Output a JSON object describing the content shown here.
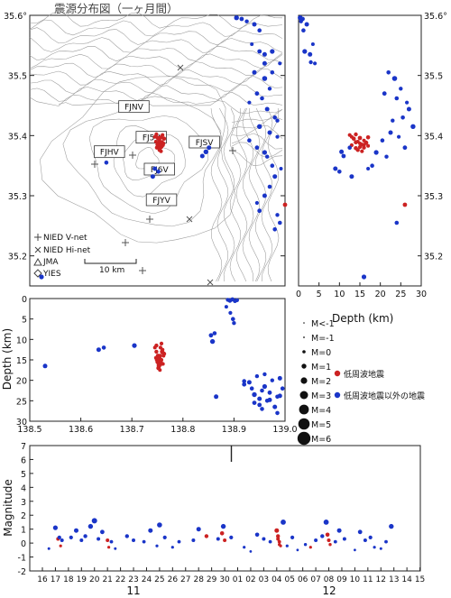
{
  "title": "震源分布図（一ヶ月間）",
  "colors": {
    "red": "#cc2222",
    "blue": "#1a35c8",
    "frame": "#222222",
    "topo": "#9a9a9a"
  },
  "map": {
    "lat_ticks": [
      "35.6°",
      "35.5",
      "35.4",
      "35.3",
      "35.2"
    ],
    "lat_values": [
      35.6,
      35.5,
      35.4,
      35.3,
      35.2
    ],
    "lon_ticks": [
      "138.5",
      "138.6",
      "138.7",
      "138.8",
      "138.9",
      "139.0"
    ],
    "lon_values": [
      138.5,
      138.6,
      138.7,
      138.8,
      138.9,
      139.0
    ],
    "stations": [
      {
        "label": "FJNV",
        "lon": 138.704,
        "lat": 35.446
      },
      {
        "label": "FJ5V",
        "lon": 138.738,
        "lat": 35.395
      },
      {
        "label": "FJSV",
        "lon": 138.842,
        "lat": 35.387
      },
      {
        "label": "FJHV",
        "lon": 138.656,
        "lat": 35.371
      },
      {
        "label": "FJ6V",
        "lon": 138.754,
        "lat": 35.342
      },
      {
        "label": "FJYV",
        "lon": 138.758,
        "lat": 35.291
      }
    ],
    "legend": [
      "NIED V-net",
      "NIED Hi-net",
      "JMA",
      "YIES"
    ],
    "scale_label": "10 km"
  },
  "depth_axis_label": "Depth (km)",
  "depth_ticks_h": [
    "0",
    "5",
    "10",
    "15",
    "20",
    "25",
    "30"
  ],
  "depth_ticks_v": [
    "0",
    "5",
    "10",
    "15",
    "20",
    "25",
    "30"
  ],
  "mag_legend": [
    "M<-1",
    "M=-1",
    "M=0",
    "M=1",
    "M=2",
    "M=3",
    "M=4",
    "M=5",
    "M=6"
  ],
  "type_legend": [
    "低周波地震",
    "低周波地震以外の地震"
  ],
  "timeline": {
    "ylabel": "Magnitude",
    "yticks": [
      "7",
      "6",
      "5",
      "4",
      "3",
      "2",
      "1",
      "0",
      "-1",
      "-2"
    ],
    "day_labels": [
      "16",
      "17",
      "18",
      "19",
      "20",
      "21",
      "22",
      "23",
      "24",
      "25",
      "26",
      "27",
      "28",
      "29",
      "30",
      "01",
      "02",
      "03",
      "04",
      "05",
      "06",
      "07",
      "08",
      "09",
      "10",
      "11",
      "12",
      "13",
      "14",
      "15"
    ],
    "months": [
      "11",
      "12"
    ]
  },
  "chart_data": [
    {
      "type": "scatter",
      "name": "epicenter map",
      "xlabel": "",
      "ylabel": "",
      "xlim": [
        138.5,
        139.0
      ],
      "ylim": [
        35.15,
        35.6
      ],
      "series": [
        {
          "name": "低周波地震",
          "color": "#cc2222",
          "x": [
            138.745,
            138.748,
            138.751,
            138.754,
            138.757,
            138.76,
            138.763,
            138.747,
            138.75,
            138.753,
            138.756,
            138.759,
            138.762,
            138.749,
            138.752,
            138.755,
            138.758,
            138.761,
            138.754,
            138.757,
            139.0
          ],
          "y": [
            35.398,
            35.402,
            35.396,
            35.392,
            35.397,
            35.401,
            35.395,
            35.39,
            35.385,
            35.388,
            35.384,
            35.389,
            35.387,
            35.38,
            35.383,
            35.379,
            35.381,
            35.384,
            35.376,
            35.374,
            35.285
          ],
          "m": [
            0.3,
            0.5,
            0.8,
            0.2,
            0.6,
            0.4,
            0.7,
            0.3,
            0.5,
            0.9,
            0.4,
            0.6,
            0.3,
            0.5,
            0.2,
            0.6,
            0.4,
            0.3,
            0.5,
            0.4,
            0.8
          ]
        },
        {
          "name": "低周波地震以外の地震",
          "color": "#1a35c8",
          "x": [
            138.905,
            138.915,
            138.925,
            138.94,
            138.95,
            138.935,
            138.96,
            138.975,
            138.99,
            138.975,
            138.96,
            138.97,
            138.945,
            138.955,
            138.93,
            138.965,
            138.98,
            138.985,
            138.95,
            138.97,
            138.985,
            138.93,
            138.945,
            138.96,
            138.965,
            138.975,
            138.992,
            138.98,
            138.97,
            138.96,
            138.945,
            138.95,
            138.985,
            138.99,
            138.98,
            138.845,
            138.838,
            138.851,
            138.745,
            138.752,
            138.741,
            138.523,
            138.65,
            138.95,
            138.96,
            138.94
          ],
          "y": [
            35.596,
            35.594,
            35.59,
            35.585,
            35.575,
            35.552,
            35.535,
            35.54,
            35.52,
            35.505,
            35.495,
            35.478,
            35.47,
            35.462,
            35.455,
            35.444,
            35.43,
            35.425,
            35.415,
            35.405,
            35.398,
            35.392,
            35.38,
            35.372,
            35.365,
            35.35,
            35.345,
            35.332,
            35.315,
            35.3,
            35.288,
            35.275,
            35.268,
            35.255,
            35.244,
            35.373,
            35.366,
            35.38,
            35.345,
            35.34,
            35.332,
            35.165,
            35.355,
            35.54,
            35.52,
            35.505
          ],
          "m": [
            1.2,
            0.8,
            0.5,
            1.0,
            0.6,
            0.3,
            0.9,
            1.1,
            0.4,
            0.7,
            1.3,
            0.5,
            0.8,
            0.6,
            0.4,
            1.0,
            0.7,
            0.5,
            1.2,
            0.9,
            0.4,
            0.6,
            0.8,
            1.1,
            0.5,
            0.7,
            0.3,
            0.9,
            0.6,
            1.0,
            0.4,
            0.8,
            0.5,
            0.7,
            0.6,
            1.2,
            0.9,
            1.0,
            0.8,
            0.6,
            0.9,
            1.1,
            0.7,
            0.8,
            1.0,
            0.9
          ]
        }
      ]
    },
    {
      "type": "scatter",
      "name": "depth vs latitude",
      "xlabel": "Depth (km)",
      "ylabel": "",
      "xlim": [
        0,
        30
      ],
      "ylim": [
        35.15,
        35.6
      ],
      "series": [
        {
          "name": "低周波地震",
          "color": "#cc2222",
          "x": [
            13.0,
            14.0,
            15.0,
            16.0,
            17.0,
            12.5,
            13.5,
            14.5,
            15.5,
            16.5,
            13.0,
            14.0,
            15.0,
            16.0,
            17.0,
            14.0,
            15.0,
            16.0,
            14.5,
            15.5,
            26
          ],
          "y": [
            35.398,
            35.402,
            35.396,
            35.392,
            35.397,
            35.401,
            35.395,
            35.39,
            35.385,
            35.388,
            35.384,
            35.389,
            35.387,
            35.38,
            35.383,
            35.379,
            35.381,
            35.384,
            35.376,
            35.374,
            35.285
          ],
          "m": [
            0.3,
            0.5,
            0.8,
            0.2,
            0.6,
            0.4,
            0.7,
            0.3,
            0.5,
            0.9,
            0.4,
            0.6,
            0.3,
            0.5,
            0.2,
            0.6,
            0.4,
            0.3,
            0.5,
            0.4,
            0.8
          ]
        },
        {
          "name": "低周波地震以外の地震",
          "color": "#1a35c8",
          "x": [
            0.4,
            1.0,
            0.6,
            2.0,
            1.2,
            3.5,
            2.8,
            1.5,
            4.0,
            22.0,
            23.5,
            25.0,
            21.0,
            24.0,
            26.5,
            27.0,
            25.5,
            23.0,
            28.0,
            22.5,
            24.5,
            20.5,
            26.0,
            19.0,
            21.5,
            18.0,
            17.0,
            13.0,
            10.5,
            11.0,
            12.5,
            9.0,
            10.0,
            24.0,
            16.0,
            3.0
          ],
          "y": [
            35.596,
            35.594,
            35.59,
            35.585,
            35.575,
            35.552,
            35.535,
            35.54,
            35.52,
            35.505,
            35.495,
            35.478,
            35.47,
            35.462,
            35.455,
            35.444,
            35.43,
            35.425,
            35.415,
            35.405,
            35.398,
            35.392,
            35.38,
            35.372,
            35.365,
            35.35,
            35.345,
            35.332,
            35.373,
            35.366,
            35.38,
            35.345,
            35.34,
            35.255,
            35.165,
            35.522
          ],
          "m": [
            1.2,
            0.8,
            0.5,
            1.0,
            0.6,
            0.3,
            0.9,
            1.1,
            0.4,
            0.7,
            1.3,
            0.5,
            0.8,
            0.6,
            0.4,
            1.0,
            0.7,
            0.5,
            1.2,
            0.9,
            0.4,
            0.6,
            0.8,
            1.1,
            0.5,
            0.7,
            0.3,
            0.9,
            1.0,
            0.8,
            0.6,
            0.9,
            0.7,
            0.6,
            1.1,
            0.5
          ]
        }
      ]
    },
    {
      "type": "scatter",
      "name": "depth vs longitude",
      "xlabel": "",
      "ylabel": "Depth (km)",
      "xlim": [
        138.5,
        139.0
      ],
      "ylim": [
        30,
        0
      ],
      "series": [
        {
          "name": "低周波地震",
          "color": "#cc2222",
          "x": [
            138.745,
            138.748,
            138.751,
            138.754,
            138.757,
            138.76,
            138.763,
            138.747,
            138.75,
            138.753,
            138.756,
            138.759,
            138.762,
            138.749,
            138.752,
            138.755,
            138.758,
            138.761,
            138.754,
            138.757,
            138.752,
            138.755,
            138.748,
            138.758,
            138.76
          ],
          "y": [
            12.0,
            13.0,
            14.0,
            15.0,
            16.0,
            12.5,
            13.5,
            14.5,
            15.5,
            16.5,
            12.0,
            13.0,
            14.0,
            15.0,
            16.0,
            14.0,
            15.0,
            16.0,
            14.5,
            15.5,
            17.0,
            17.5,
            11.5,
            11.0,
            13.2
          ],
          "m": [
            0.3,
            0.5,
            0.8,
            0.2,
            0.6,
            0.4,
            0.7,
            0.3,
            0.5,
            0.9,
            0.4,
            0.6,
            0.3,
            0.5,
            0.2,
            0.6,
            0.4,
            0.3,
            0.5,
            0.4,
            0.6,
            0.3,
            0.5,
            0.4,
            0.7
          ]
        },
        {
          "name": "低周波地震以外の地震",
          "color": "#1a35c8",
          "x": [
            138.53,
            138.635,
            138.645,
            138.705,
            138.855,
            138.858,
            138.862,
            138.888,
            138.892,
            138.897,
            138.902,
            138.906,
            138.893,
            138.898,
            138.9,
            138.885,
            138.92,
            138.93,
            138.935,
            138.94,
            138.945,
            138.95,
            138.955,
            138.96,
            138.965,
            138.97,
            138.975,
            138.98,
            138.985,
            138.99,
            138.995,
            138.94,
            138.955,
            138.96,
            138.97,
            138.985,
            138.95,
            138.99,
            138.865,
            138.92
          ],
          "y": [
            16.5,
            12.5,
            12.0,
            11.5,
            9.0,
            10.5,
            8.5,
            0.3,
            0.5,
            0.2,
            0.6,
            0.4,
            3.5,
            5.0,
            6.0,
            2.0,
            21.0,
            20.5,
            22.0,
            23.5,
            19.0,
            24.5,
            22.5,
            21.5,
            25.0,
            23.0,
            20.0,
            26.5,
            24.0,
            19.5,
            22.0,
            25.5,
            27.0,
            18.5,
            24.8,
            28.0,
            26.0,
            23.8,
            24.0,
            20.2
          ],
          "m": [
            1.0,
            0.9,
            0.7,
            1.1,
            0.8,
            1.2,
            0.6,
            0.5,
            0.8,
            0.7,
            0.6,
            0.5,
            0.4,
            0.6,
            0.5,
            0.3,
            0.8,
            1.0,
            0.6,
            1.2,
            0.5,
            0.9,
            0.7,
            1.1,
            0.6,
            0.8,
            0.5,
            1.0,
            0.7,
            0.9,
            0.6,
            0.8,
            0.7,
            0.5,
            1.0,
            0.6,
            0.8,
            0.9,
            1.0,
            0.7
          ]
        }
      ]
    },
    {
      "type": "scatter",
      "name": "magnitude timeline",
      "xlabel": "",
      "ylabel": "Magnitude",
      "xlim": [
        16,
        46
      ],
      "ylim": [
        -2,
        7
      ],
      "series": [
        {
          "name": "低周波地震",
          "color": "#cc2222",
          "x": [
            17.2,
            17.4,
            21.0,
            21.1,
            28.6,
            29.8,
            30.0,
            34.0,
            34.1,
            34.2,
            34.3,
            34.1,
            34.2,
            36.6,
            37.9,
            38.0,
            38.1
          ],
          "y": [
            0.3,
            -0.2,
            0.2,
            -0.3,
            0.5,
            0.7,
            0.2,
            0.9,
            0.5,
            0.1,
            -0.2,
            0.3,
            -0.1,
            -0.3,
            0.6,
            0.2,
            -0.1
          ],
          "m": [
            0.3,
            -0.2,
            0.2,
            -0.3,
            0.5,
            0.7,
            0.2,
            0.9,
            0.5,
            0.1,
            -0.2,
            0.3,
            -0.1,
            -0.3,
            0.6,
            0.2,
            -0.1
          ]
        },
        {
          "name": "低周波地震以外の地震",
          "color": "#1a35c8",
          "x": [
            16.5,
            17.0,
            17.3,
            17.5,
            18.2,
            18.6,
            19.0,
            19.3,
            19.7,
            20.0,
            20.3,
            20.6,
            21.3,
            21.6,
            22.5,
            23.0,
            23.8,
            24.3,
            24.8,
            25.0,
            25.4,
            26.0,
            26.5,
            27.6,
            28.0,
            29.5,
            29.9,
            30.5,
            31.5,
            32.0,
            32.5,
            33.0,
            33.5,
            34.5,
            34.8,
            35.2,
            35.6,
            36.2,
            37.0,
            37.5,
            37.8,
            38.5,
            38.8,
            39.2,
            40.0,
            40.4,
            40.8,
            41.2,
            41.5,
            42.0,
            42.4,
            42.8
          ],
          "y": [
            -0.4,
            1.1,
            0.4,
            0.2,
            0.4,
            0.9,
            0.2,
            0.5,
            1.2,
            1.6,
            0.3,
            0.8,
            0.1,
            -0.4,
            0.5,
            0.2,
            0.1,
            0.9,
            -0.2,
            1.3,
            0.4,
            -0.3,
            0.1,
            0.2,
            1.0,
            0.3,
            1.2,
            0.4,
            -0.3,
            -0.6,
            0.6,
            0.3,
            0.1,
            1.5,
            -0.2,
            0.4,
            -0.5,
            -0.1,
            0.2,
            0.5,
            1.5,
            0.1,
            0.9,
            0.3,
            -0.5,
            0.8,
            0.2,
            0.4,
            -0.3,
            -0.4,
            0.1,
            1.2
          ],
          "m": [
            -0.4,
            1.1,
            0.4,
            0.2,
            0.4,
            0.9,
            0.2,
            0.5,
            1.2,
            1.6,
            0.3,
            0.8,
            0.1,
            -0.4,
            0.5,
            0.2,
            0.1,
            0.9,
            -0.2,
            1.3,
            0.4,
            -0.3,
            0.1,
            0.2,
            1.0,
            0.3,
            1.2,
            0.4,
            -0.3,
            -0.6,
            0.6,
            0.3,
            0.1,
            1.5,
            -0.2,
            0.4,
            -0.5,
            -0.1,
            0.2,
            0.5,
            1.5,
            0.1,
            0.9,
            0.3,
            -0.5,
            0.8,
            0.2,
            0.4,
            -0.3,
            -0.4,
            0.1,
            1.2
          ]
        }
      ]
    }
  ]
}
